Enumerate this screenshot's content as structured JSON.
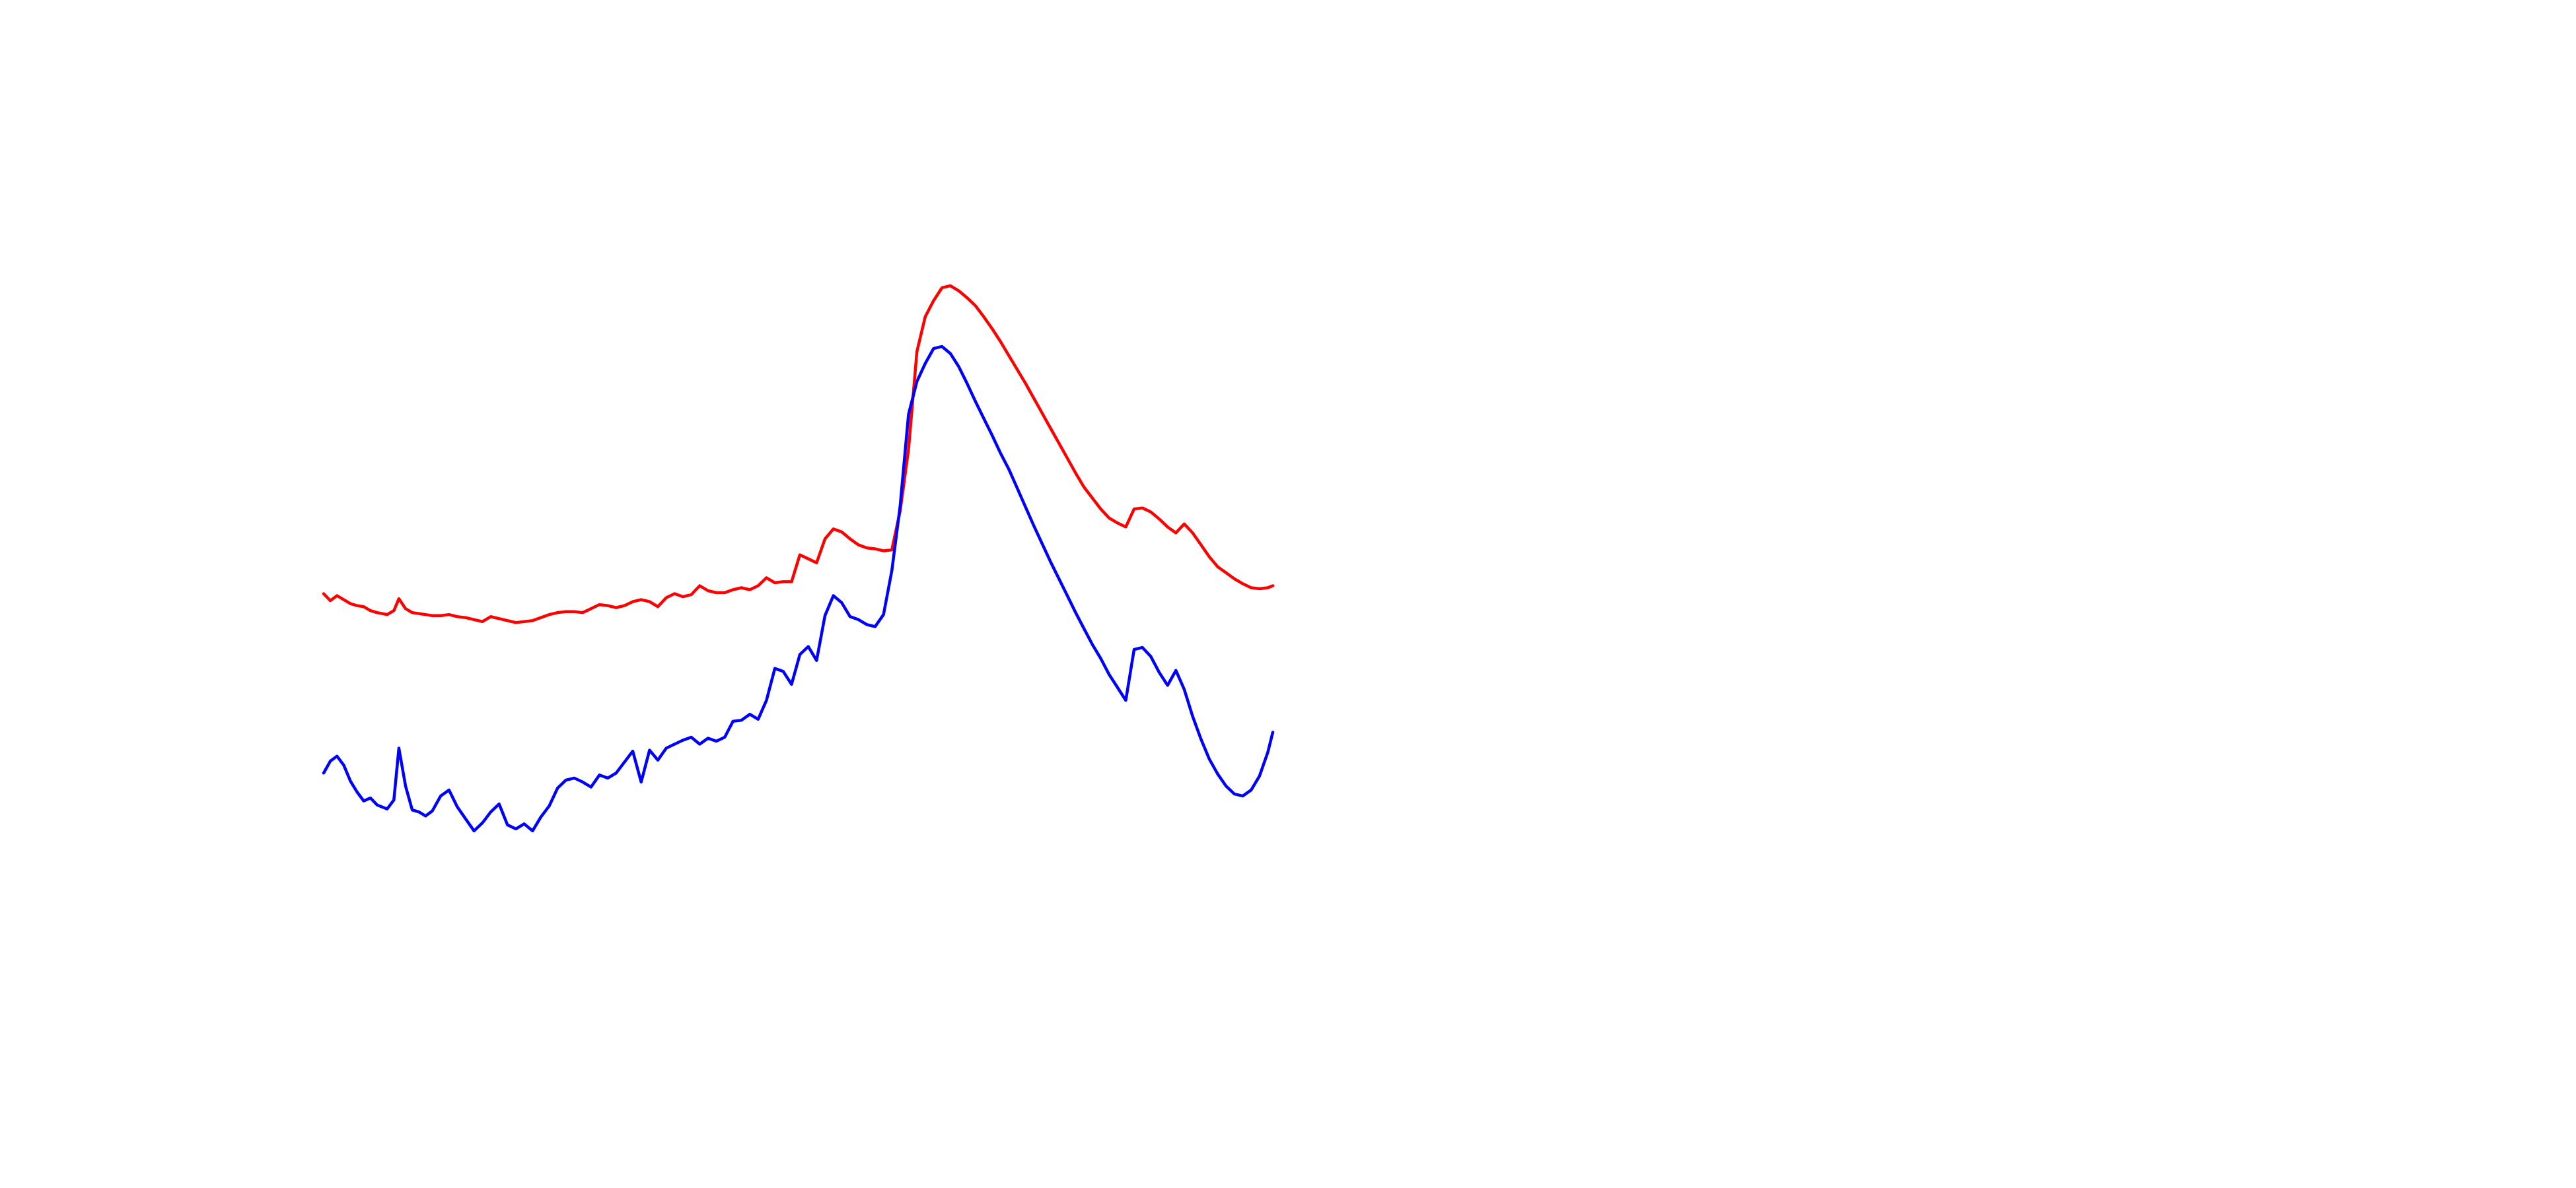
{
  "chart_data": {
    "type": "line",
    "title": "",
    "xlabel": "",
    "ylabel": "",
    "axes_visible": false,
    "grid": false,
    "legend": "none",
    "xlim": [
      0,
      120
    ],
    "ylim": [
      0,
      100
    ],
    "series": [
      {
        "color": "#ff0000",
        "values": [
          [
            0.0,
            49.7
          ],
          [
            0.8,
            49.0
          ],
          [
            1.6,
            49.5
          ],
          [
            2.4,
            49.1
          ],
          [
            3.2,
            48.7
          ],
          [
            4.0,
            48.5
          ],
          [
            4.8,
            48.4
          ],
          [
            5.6,
            48.0
          ],
          [
            6.4,
            47.8
          ],
          [
            7.6,
            47.6
          ],
          [
            8.4,
            48.0
          ],
          [
            9.0,
            49.2
          ],
          [
            9.8,
            48.2
          ],
          [
            10.6,
            47.8
          ],
          [
            11.4,
            47.7
          ],
          [
            12.2,
            47.6
          ],
          [
            13.0,
            47.5
          ],
          [
            14.0,
            47.5
          ],
          [
            15.0,
            47.6
          ],
          [
            16.0,
            47.4
          ],
          [
            17.0,
            47.3
          ],
          [
            18.0,
            47.1
          ],
          [
            19.0,
            46.9
          ],
          [
            20.0,
            47.4
          ],
          [
            21.0,
            47.2
          ],
          [
            22.0,
            47.0
          ],
          [
            23.0,
            46.8
          ],
          [
            24.0,
            46.9
          ],
          [
            25.0,
            47.0
          ],
          [
            26.0,
            47.3
          ],
          [
            27.0,
            47.6
          ],
          [
            28.0,
            47.8
          ],
          [
            29.0,
            47.9
          ],
          [
            30.0,
            47.9
          ],
          [
            31.0,
            47.8
          ],
          [
            32.0,
            48.2
          ],
          [
            33.0,
            48.6
          ],
          [
            34.0,
            48.5
          ],
          [
            35.0,
            48.3
          ],
          [
            36.0,
            48.5
          ],
          [
            37.0,
            48.9
          ],
          [
            38.0,
            49.1
          ],
          [
            39.0,
            48.9
          ],
          [
            40.0,
            48.4
          ],
          [
            41.0,
            49.3
          ],
          [
            42.0,
            49.7
          ],
          [
            43.0,
            49.4
          ],
          [
            44.0,
            49.6
          ],
          [
            45.0,
            50.5
          ],
          [
            46.0,
            50.0
          ],
          [
            47.0,
            49.8
          ],
          [
            48.0,
            49.8
          ],
          [
            49.0,
            50.1
          ],
          [
            50.0,
            50.3
          ],
          [
            51.0,
            50.1
          ],
          [
            52.0,
            50.5
          ],
          [
            53.0,
            51.3
          ],
          [
            54.0,
            50.8
          ],
          [
            55.0,
            50.9
          ],
          [
            56.0,
            50.9
          ],
          [
            57.0,
            53.6
          ],
          [
            58.0,
            53.2
          ],
          [
            59.0,
            52.8
          ],
          [
            60.0,
            55.2
          ],
          [
            61.0,
            56.2
          ],
          [
            62.0,
            55.9
          ],
          [
            63.0,
            55.2
          ],
          [
            64.0,
            54.6
          ],
          [
            65.0,
            54.3
          ],
          [
            66.0,
            54.2
          ],
          [
            67.0,
            54.0
          ],
          [
            68.0,
            54.1
          ],
          [
            69.0,
            58.0
          ],
          [
            70.0,
            64.2
          ],
          [
            71.0,
            74.0
          ],
          [
            72.0,
            77.5
          ],
          [
            73.0,
            79.1
          ],
          [
            74.0,
            80.4
          ],
          [
            75.0,
            80.6
          ],
          [
            76.0,
            80.1
          ],
          [
            77.0,
            79.4
          ],
          [
            78.0,
            78.6
          ],
          [
            79.0,
            77.5
          ],
          [
            80.0,
            76.3
          ],
          [
            81.0,
            75.0
          ],
          [
            82.0,
            73.6
          ],
          [
            83.0,
            72.2
          ],
          [
            84.0,
            70.8
          ],
          [
            85.0,
            69.3
          ],
          [
            86.0,
            67.8
          ],
          [
            87.0,
            66.3
          ],
          [
            88.0,
            64.8
          ],
          [
            89.0,
            63.3
          ],
          [
            90.0,
            61.8
          ],
          [
            91.0,
            60.4
          ],
          [
            92.0,
            59.3
          ],
          [
            93.0,
            58.2
          ],
          [
            94.0,
            57.3
          ],
          [
            95.0,
            56.8
          ],
          [
            96.0,
            56.4
          ],
          [
            97.0,
            58.2
          ],
          [
            98.0,
            58.3
          ],
          [
            99.0,
            57.9
          ],
          [
            100.0,
            57.2
          ],
          [
            101.0,
            56.4
          ],
          [
            102.0,
            55.8
          ],
          [
            103.0,
            56.7
          ],
          [
            104.0,
            55.8
          ],
          [
            105.0,
            54.6
          ],
          [
            106.0,
            53.4
          ],
          [
            107.0,
            52.4
          ],
          [
            108.0,
            51.8
          ],
          [
            109.0,
            51.2
          ],
          [
            110.0,
            50.7
          ],
          [
            111.0,
            50.3
          ],
          [
            112.0,
            50.2
          ],
          [
            113.0,
            50.3
          ],
          [
            113.6,
            50.5
          ]
        ]
      },
      {
        "color": "#0000ff",
        "values": [
          [
            0.0,
            31.7
          ],
          [
            0.8,
            32.9
          ],
          [
            1.6,
            33.4
          ],
          [
            2.4,
            32.5
          ],
          [
            3.2,
            30.9
          ],
          [
            4.0,
            29.8
          ],
          [
            4.8,
            28.9
          ],
          [
            5.6,
            29.2
          ],
          [
            6.4,
            28.5
          ],
          [
            7.6,
            28.1
          ],
          [
            8.4,
            29.0
          ],
          [
            9.0,
            34.2
          ],
          [
            9.8,
            30.4
          ],
          [
            10.6,
            28.0
          ],
          [
            11.4,
            27.8
          ],
          [
            12.2,
            27.4
          ],
          [
            13.0,
            27.9
          ],
          [
            14.0,
            29.4
          ],
          [
            15.0,
            30.0
          ],
          [
            16.0,
            28.3
          ],
          [
            17.0,
            27.1
          ],
          [
            18.0,
            25.9
          ],
          [
            19.0,
            26.7
          ],
          [
            20.0,
            27.8
          ],
          [
            21.0,
            28.6
          ],
          [
            22.0,
            26.5
          ],
          [
            23.0,
            26.1
          ],
          [
            24.0,
            26.6
          ],
          [
            25.0,
            25.9
          ],
          [
            26.0,
            27.3
          ],
          [
            27.0,
            28.4
          ],
          [
            28.0,
            30.2
          ],
          [
            29.0,
            31.0
          ],
          [
            30.0,
            31.2
          ],
          [
            31.0,
            30.8
          ],
          [
            32.0,
            30.3
          ],
          [
            33.0,
            31.5
          ],
          [
            34.0,
            31.2
          ],
          [
            35.0,
            31.7
          ],
          [
            36.0,
            32.8
          ],
          [
            37.0,
            33.9
          ],
          [
            38.0,
            30.8
          ],
          [
            39.0,
            34.0
          ],
          [
            40.0,
            33.0
          ],
          [
            41.0,
            34.2
          ],
          [
            42.0,
            34.6
          ],
          [
            43.0,
            35.0
          ],
          [
            44.0,
            35.3
          ],
          [
            45.0,
            34.6
          ],
          [
            46.0,
            35.2
          ],
          [
            47.0,
            34.9
          ],
          [
            48.0,
            35.3
          ],
          [
            49.0,
            36.9
          ],
          [
            50.0,
            37.0
          ],
          [
            51.0,
            37.6
          ],
          [
            52.0,
            37.1
          ],
          [
            53.0,
            39.0
          ],
          [
            54.0,
            42.2
          ],
          [
            55.0,
            41.9
          ],
          [
            56.0,
            40.6
          ],
          [
            57.0,
            43.6
          ],
          [
            58.0,
            44.4
          ],
          [
            59.0,
            43.0
          ],
          [
            60.0,
            47.5
          ],
          [
            61.0,
            49.5
          ],
          [
            62.0,
            48.8
          ],
          [
            63.0,
            47.4
          ],
          [
            64.0,
            47.1
          ],
          [
            65.0,
            46.6
          ],
          [
            66.0,
            46.4
          ],
          [
            67.0,
            47.6
          ],
          [
            68.0,
            52.0
          ],
          [
            69.0,
            58.5
          ],
          [
            70.0,
            67.7
          ],
          [
            71.0,
            71.0
          ],
          [
            72.0,
            72.8
          ],
          [
            73.0,
            74.3
          ],
          [
            74.0,
            74.5
          ],
          [
            75.0,
            73.8
          ],
          [
            76.0,
            72.5
          ],
          [
            77.0,
            70.8
          ],
          [
            78.0,
            69.0
          ],
          [
            79.0,
            67.3
          ],
          [
            80.0,
            65.6
          ],
          [
            81.0,
            63.8
          ],
          [
            82.0,
            62.2
          ],
          [
            83.0,
            60.3
          ],
          [
            84.0,
            58.4
          ],
          [
            85.0,
            56.5
          ],
          [
            86.0,
            54.7
          ],
          [
            87.0,
            52.9
          ],
          [
            88.0,
            51.2
          ],
          [
            89.0,
            49.5
          ],
          [
            90.0,
            47.8
          ],
          [
            91.0,
            46.2
          ],
          [
            92.0,
            44.6
          ],
          [
            93.0,
            43.2
          ],
          [
            94.0,
            41.6
          ],
          [
            95.0,
            40.3
          ],
          [
            96.0,
            39.0
          ],
          [
            97.0,
            44.1
          ],
          [
            98.0,
            44.3
          ],
          [
            99.0,
            43.4
          ],
          [
            100.0,
            41.8
          ],
          [
            101.0,
            40.5
          ],
          [
            102.0,
            42.0
          ],
          [
            103.0,
            40.1
          ],
          [
            104.0,
            37.4
          ],
          [
            105.0,
            35.1
          ],
          [
            106.0,
            33.1
          ],
          [
            107.0,
            31.6
          ],
          [
            108.0,
            30.4
          ],
          [
            109.0,
            29.6
          ],
          [
            110.0,
            29.4
          ],
          [
            111.0,
            30.0
          ],
          [
            112.0,
            31.4
          ],
          [
            113.0,
            33.8
          ],
          [
            113.6,
            35.8
          ]
        ]
      }
    ]
  }
}
